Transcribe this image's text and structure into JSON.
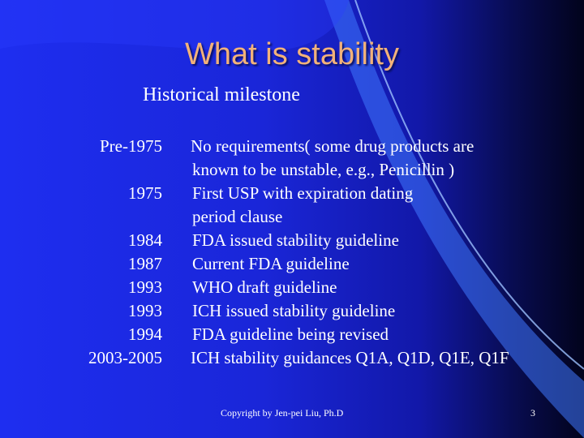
{
  "slide": {
    "title": "What is stability",
    "subtitle": "Historical milestone",
    "rows": [
      {
        "year": "Pre-1975",
        "text": "No requirements( some drug products are"
      },
      {
        "year": "",
        "text": "known to be unstable, e.g., Penicillin )"
      },
      {
        "year": "1975",
        "text": "First USP with expiration dating"
      },
      {
        "year": "",
        "text": "period clause"
      },
      {
        "year": "1984",
        "text": "FDA issued stability guideline"
      },
      {
        "year": "1987",
        "text": "Current FDA guideline"
      },
      {
        "year": "1993",
        "text": "WHO draft guideline"
      },
      {
        "year": "1993",
        "text": "ICH issued stability guideline"
      },
      {
        "year": "1994",
        "text": "FDA guideline being revised"
      },
      {
        "year": "2003-2005",
        "text": "ICH stability guidances Q1A, Q1D, Q1E, Q1F"
      }
    ],
    "footer": "Copyright by Jen-pei Liu, Ph.D",
    "page_number": "3"
  },
  "colors": {
    "title": "#f2b27a",
    "background_blue": "#1e2ef0",
    "background_dark": "#02031c",
    "swoosh": "#4a86ff"
  }
}
